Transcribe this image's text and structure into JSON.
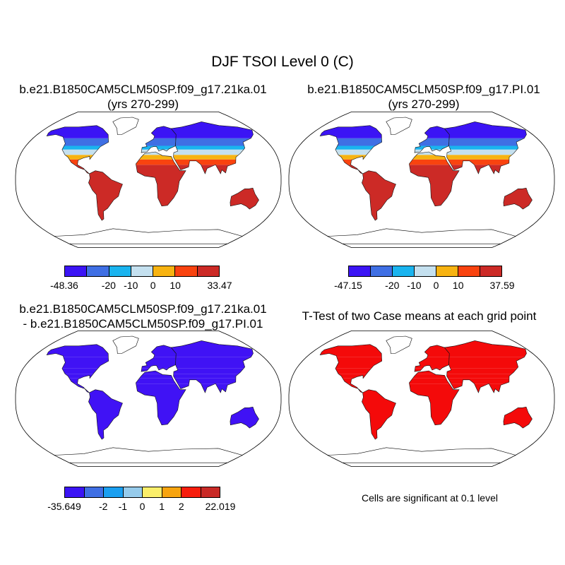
{
  "figure": {
    "title": "DJF TSOI Level 0 (C)"
  },
  "panels": [
    {
      "title_line1": "b.e21.B1850CAM5CLM50SP.f09_g17.21ka.01",
      "title_line2": "(yrs 270-299)",
      "colorbar": {
        "colors": [
          "#3b14f5",
          "#3f6fe4",
          "#1ab4ef",
          "#c4e0ef",
          "#f7b311",
          "#f9430f",
          "#cc2a26"
        ],
        "labels": [
          "-48.36",
          "-20",
          "-10",
          "0",
          "10",
          "33.47"
        ]
      }
    },
    {
      "title_line1": "b.e21.B1850CAM5CLM50SP.f09_g17.PI.01",
      "title_line2": "(yrs 270-299)",
      "colorbar": {
        "colors": [
          "#3b14f5",
          "#3f6fe4",
          "#1ab4ef",
          "#c4e0ef",
          "#f7b311",
          "#f9430f",
          "#cc2a26"
        ],
        "labels": [
          "-47.15",
          "-20",
          "-10",
          "0",
          "10",
          "37.59"
        ]
      }
    },
    {
      "title_line1": "b.e21.B1850CAM5CLM50SP.f09_g17.21ka.01",
      "title_line2": "- b.e21.B1850CAM5CLM50SP.f09_g17.PI.01",
      "colorbar": {
        "colors": [
          "#3b14f5",
          "#3f6fe4",
          "#1a9ff0",
          "#96cbeb",
          "#faee6a",
          "#f7a40f",
          "#f71d0c",
          "#c92a26"
        ],
        "labels": [
          "-35.649",
          "-2",
          "-1",
          "0",
          "1",
          "2",
          "22.019"
        ]
      }
    },
    {
      "title_line1": "T-Test of two Case means at each grid point",
      "title_line2": "",
      "note": "Cells are significant at 0.1 level"
    }
  ],
  "colors": {
    "diff_blue": "#4012f5",
    "ttest_red": "#f40a0a"
  }
}
